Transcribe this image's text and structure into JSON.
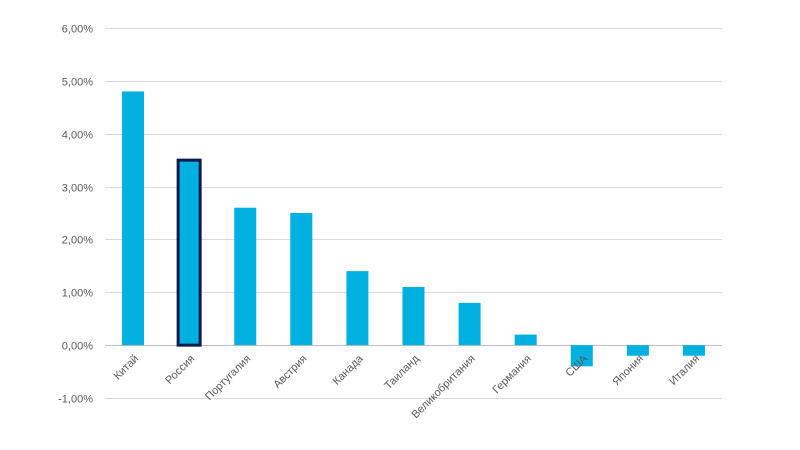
{
  "chart_data": {
    "type": "bar",
    "categories": [
      "Китай",
      "Россия",
      "Португалия",
      "Австрия",
      "Канада",
      "Таиланд",
      "Великобритания",
      "Германия",
      "США",
      "Япония",
      "Италия"
    ],
    "values": [
      4.8,
      3.5,
      2.6,
      2.5,
      1.4,
      1.1,
      0.8,
      0.2,
      -0.4,
      -0.2,
      -0.2
    ],
    "unit": "%",
    "ylim": [
      -1,
      6
    ],
    "yticks": [
      6,
      5,
      4,
      3,
      2,
      1,
      0,
      -1
    ],
    "ytick_labels": [
      "6,00%",
      "5,00%",
      "4,00%",
      "3,00%",
      "2,00%",
      "1,00%",
      "0,00%",
      "-1,00%"
    ],
    "grid": true,
    "bar_color": "#00b0e0",
    "highlight": {
      "category": "Россия",
      "outline_color": "#0d1b4c"
    },
    "title": "",
    "xlabel": "",
    "ylabel": ""
  }
}
